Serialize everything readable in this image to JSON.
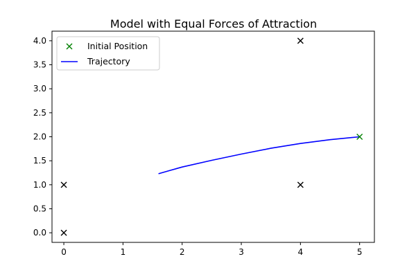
{
  "chart_data": {
    "type": "scatter",
    "title": "Model with Equal Forces of Attraction",
    "xlabel": "",
    "ylabel": "",
    "xlim": [
      -0.2,
      5.25
    ],
    "ylim": [
      -0.2,
      4.2
    ],
    "xticks": [
      0,
      1,
      2,
      3,
      4,
      5
    ],
    "yticks": [
      0.0,
      0.5,
      1.0,
      1.5,
      2.0,
      2.5,
      3.0,
      3.5,
      4.0
    ],
    "xtick_labels": [
      "0",
      "1",
      "2",
      "3",
      "4",
      "5"
    ],
    "ytick_labels": [
      "0.0",
      "0.5",
      "1.0",
      "1.5",
      "2.0",
      "2.5",
      "3.0",
      "3.5",
      "4.0"
    ],
    "grid": false,
    "legend_position": "top-left",
    "attractors": {
      "color": "#000000",
      "marker": "x",
      "points": [
        {
          "x": 0,
          "y": 0
        },
        {
          "x": 0,
          "y": 1
        },
        {
          "x": 4,
          "y": 1
        },
        {
          "x": 4,
          "y": 4
        }
      ]
    },
    "series": [
      {
        "name": "Initial Position",
        "kind": "marker",
        "marker": "x",
        "color": "#008000",
        "points": [
          {
            "x": 5,
            "y": 2
          }
        ]
      },
      {
        "name": "Trajectory",
        "kind": "line",
        "color": "#0000ff",
        "points": [
          {
            "x": 5.0,
            "y": 2.0
          },
          {
            "x": 4.5,
            "y": 1.94
          },
          {
            "x": 4.0,
            "y": 1.86
          },
          {
            "x": 3.5,
            "y": 1.76
          },
          {
            "x": 3.0,
            "y": 1.64
          },
          {
            "x": 2.5,
            "y": 1.51
          },
          {
            "x": 2.0,
            "y": 1.37
          },
          {
            "x": 1.8,
            "y": 1.3
          },
          {
            "x": 1.6,
            "y": 1.23
          }
        ]
      }
    ]
  }
}
